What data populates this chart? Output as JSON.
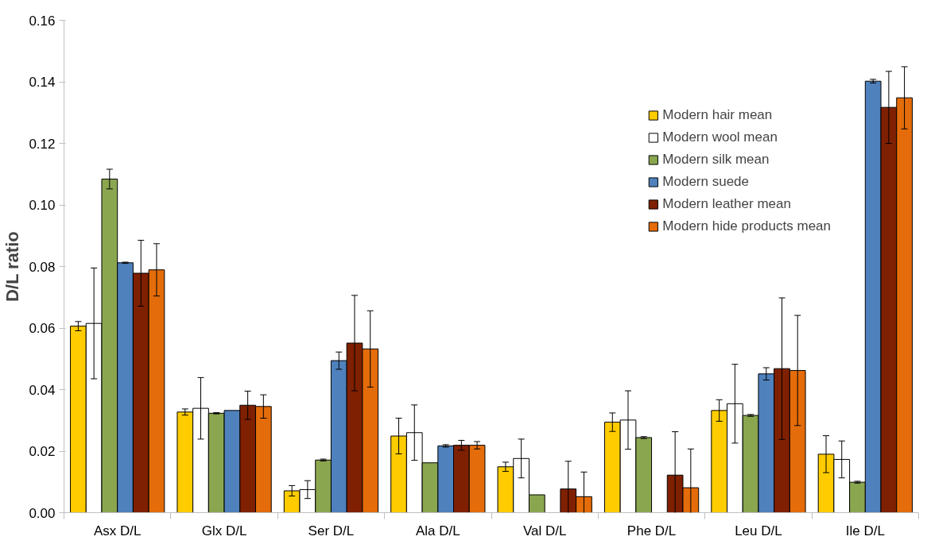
{
  "chart_data": {
    "type": "bar",
    "ylabel": "D/L ratio",
    "categories": [
      "Asx D/L",
      "Glx D/L",
      "Ser D/L",
      "Ala D/L",
      "Val D/L",
      "Phe D/L",
      "Leu D/L",
      "Ile D/L"
    ],
    "ylim": [
      0,
      0.16
    ],
    "yticks": [
      {
        "value": 0,
        "label": "0.00"
      },
      {
        "value": 0.02,
        "label": "0.02"
      },
      {
        "value": 0.04,
        "label": "0.04"
      },
      {
        "value": 0.06,
        "label": "0.06"
      },
      {
        "value": 0.08,
        "label": "0.08"
      },
      {
        "value": 0.1,
        "label": "0.10"
      },
      {
        "value": 0.12,
        "label": "0.12"
      },
      {
        "value": 0.14,
        "label": "0.14"
      },
      {
        "value": 0.16,
        "label": "0.16"
      }
    ],
    "grid": false,
    "legend": "top right",
    "series": [
      {
        "name": "Modern hair mean",
        "color": "#ffcc00",
        "values": [
          0.0606,
          0.0327,
          0.0071,
          0.0249,
          0.0149,
          0.0294,
          0.0332,
          0.019
        ],
        "errors": [
          0.0015,
          0.001,
          0.0017,
          0.0058,
          0.0015,
          0.003,
          0.0035,
          0.006
        ]
      },
      {
        "name": "Modern wool mean",
        "color": "#ffffff",
        "values": [
          0.0615,
          0.0339,
          0.0075,
          0.026,
          0.0176,
          0.0301,
          0.0354,
          0.0173
        ],
        "errors": [
          0.018,
          0.01,
          0.0029,
          0.009,
          0.0063,
          0.0095,
          0.0128,
          0.006
        ]
      },
      {
        "name": "Modern silk mean",
        "color": "#8aa64f",
        "values": [
          0.1084,
          0.0323,
          0.0171,
          0.0162,
          0.0058,
          0.0244,
          0.0316,
          0.0099
        ],
        "errors": [
          0.0032,
          0.0002,
          0.0003,
          null,
          null,
          0.0003,
          0.0003,
          0.0003
        ]
      },
      {
        "name": "Modern suede",
        "color": "#4f81bd",
        "values": [
          0.0812,
          0.0332,
          0.0494,
          0.0217,
          null,
          null,
          0.0451,
          0.1402
        ],
        "errors": [
          0.0002,
          null,
          0.0028,
          0.0004,
          null,
          null,
          0.002,
          0.0006
        ]
      },
      {
        "name": "Modern leather mean",
        "color": "#7f2000",
        "values": [
          0.0778,
          0.0349,
          0.0551,
          0.0219,
          0.0077,
          0.0122,
          0.0468,
          0.1317
        ],
        "errors": [
          0.0107,
          0.0046,
          0.0155,
          0.0016,
          0.009,
          0.0141,
          0.023,
          0.0117
        ]
      },
      {
        "name": "Modern hide products mean",
        "color": "#e46c0a",
        "values": [
          0.0789,
          0.0345,
          0.0532,
          0.0219,
          0.0052,
          0.0081,
          0.0462,
          0.1348
        ],
        "errors": [
          0.0085,
          0.0038,
          0.0124,
          0.0012,
          0.008,
          0.0126,
          0.0179,
          0.0101
        ]
      }
    ]
  }
}
